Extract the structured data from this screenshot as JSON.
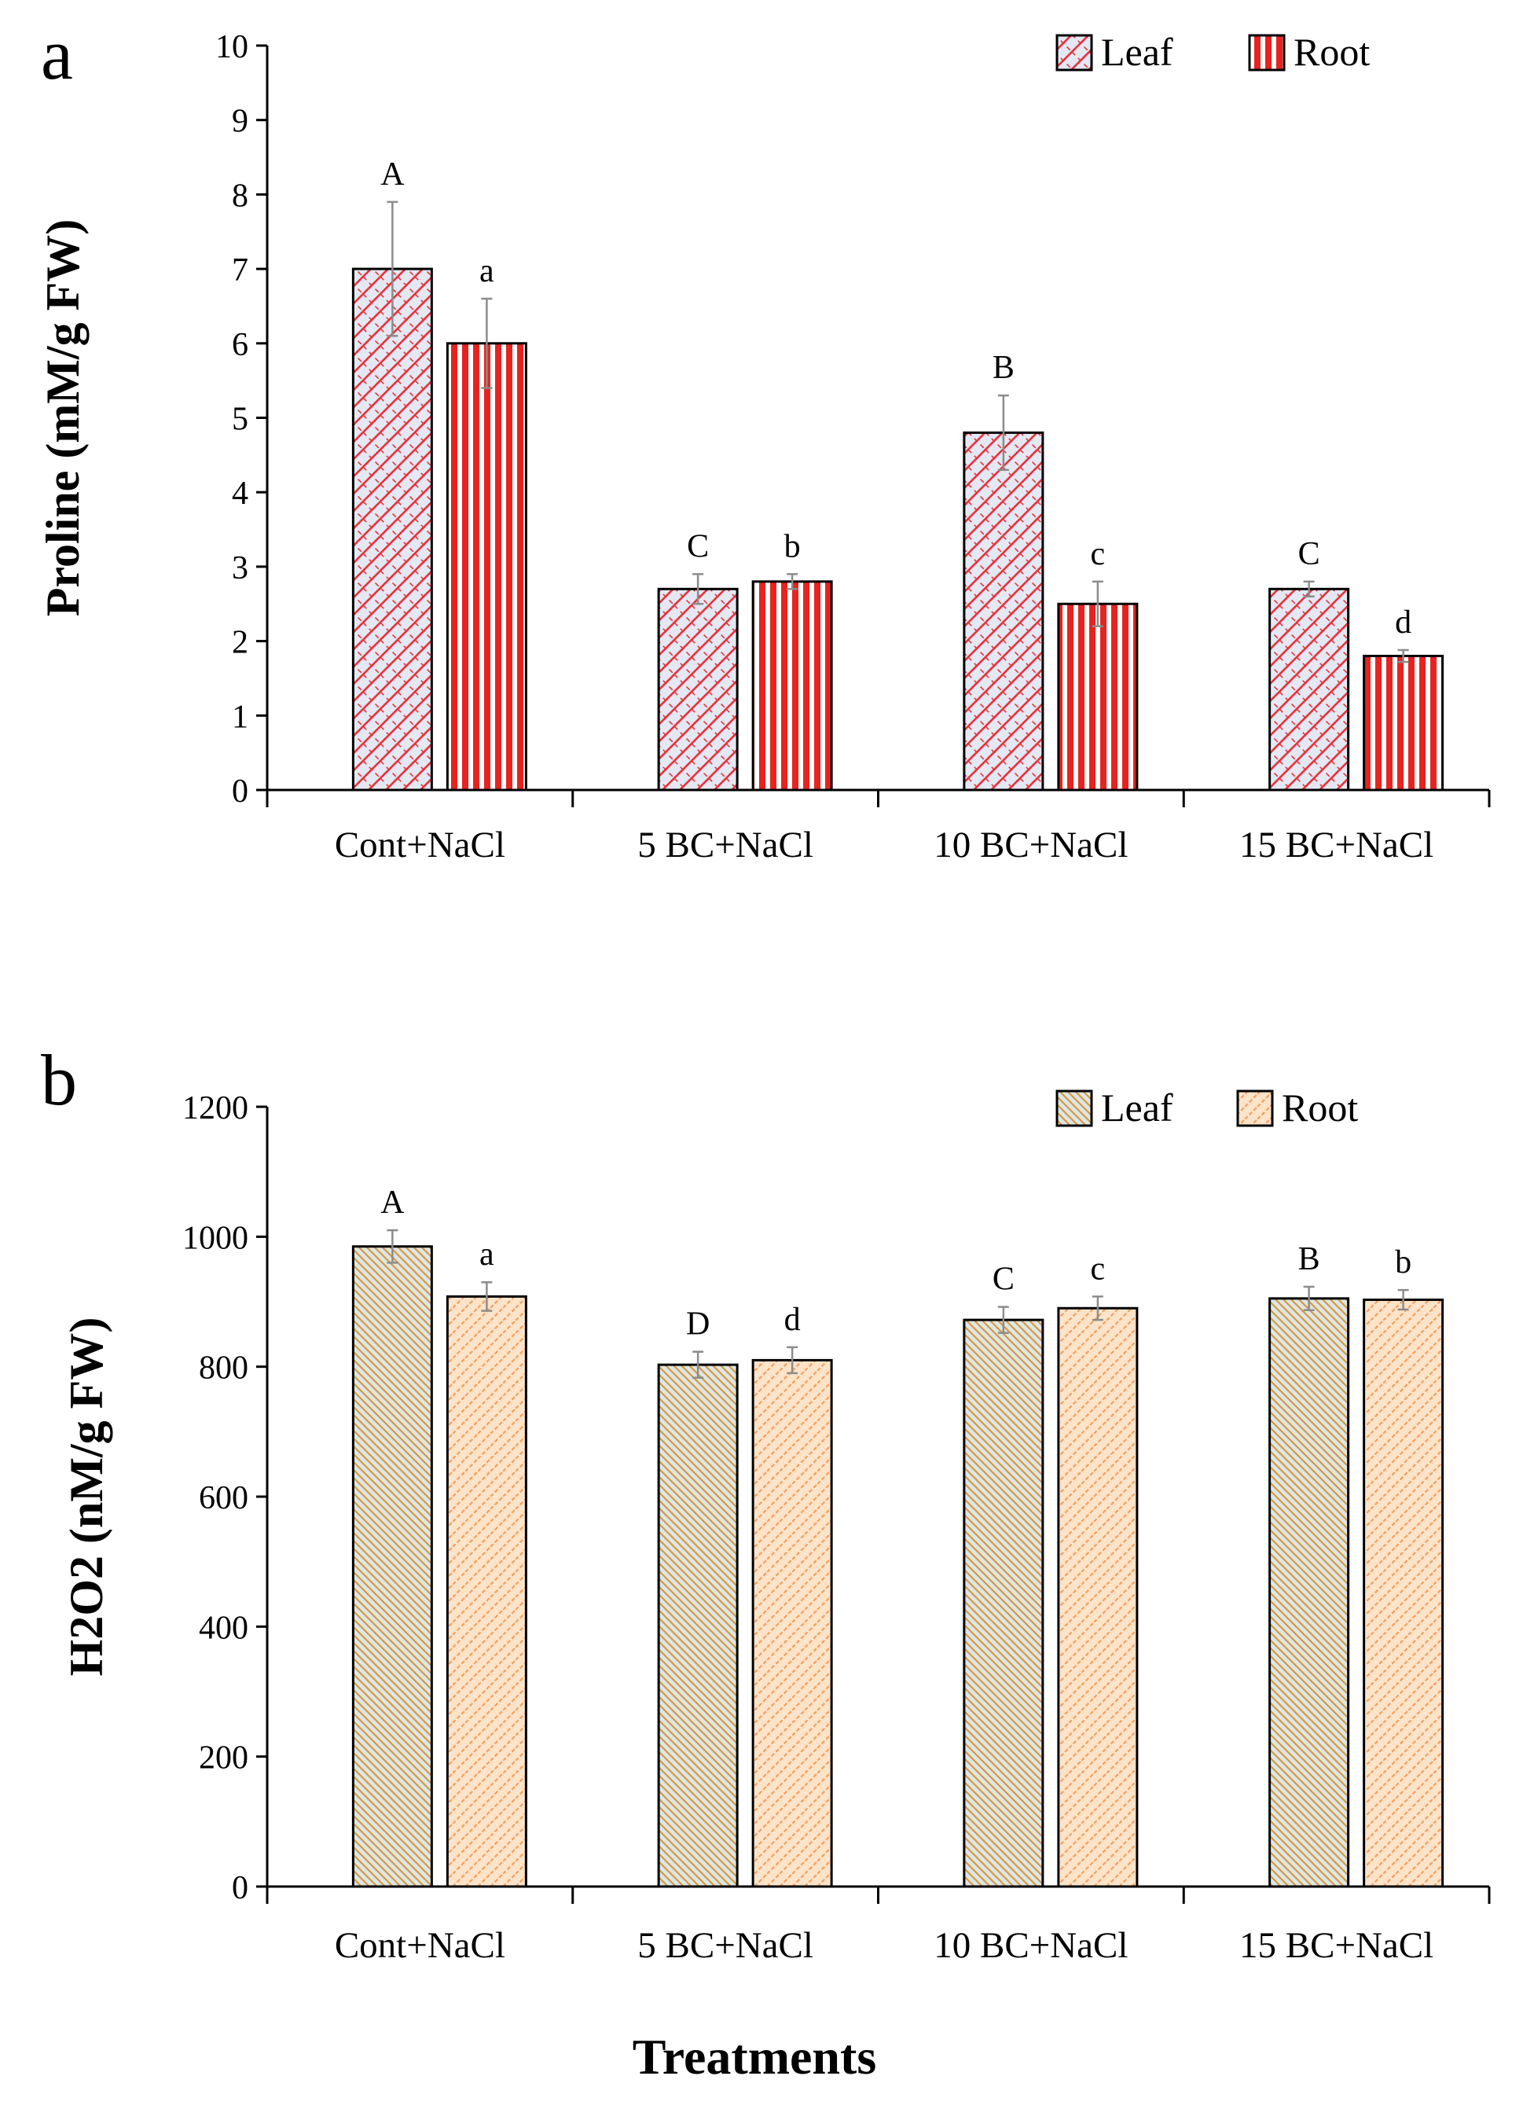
{
  "xlabel": "Treatments",
  "colors": {
    "leaf_a_stroke": "#e8323a",
    "leaf_a_fill": "#e3e8f3",
    "root_a_fill": "#e8231f",
    "root_a_bg": "#ffffff",
    "leaf_b_stroke": "#d69a3a",
    "leaf_b_fill": "#dde6e8",
    "root_b_stroke": "#f0a060",
    "root_b_fill": "#fde3c8",
    "error_bar": "#8c8c8c",
    "axis": "#000000"
  },
  "chart_data": [
    {
      "panel": "a",
      "type": "bar",
      "title": "",
      "xlabel": "",
      "ylabel": "Proline (mM/g FW)",
      "categories": [
        "Cont+NaCl",
        "5 BC+NaCl",
        "10 BC+NaCl",
        "15 BC+NaCl"
      ],
      "ylim": [
        0,
        10
      ],
      "yticks": [
        "0",
        "1",
        "2",
        "3",
        "4",
        "5",
        "6",
        "7",
        "8",
        "9",
        "10"
      ],
      "legend": [
        "Leaf",
        "Root"
      ],
      "legend_position": "top-right",
      "series": [
        {
          "name": "Leaf",
          "values": [
            7.0,
            2.7,
            4.8,
            2.7
          ],
          "errors": [
            0.9,
            0.2,
            0.5,
            0.1
          ],
          "labels": [
            "A",
            "C",
            "B",
            "C"
          ]
        },
        {
          "name": "Root",
          "values": [
            6.0,
            2.8,
            2.5,
            1.8
          ],
          "errors": [
            0.6,
            0.1,
            0.3,
            0.08
          ],
          "labels": [
            "a",
            "b",
            "c",
            "d"
          ]
        }
      ]
    },
    {
      "panel": "b",
      "type": "bar",
      "title": "",
      "xlabel": "",
      "ylabel": "H2O2 (nM/g FW)",
      "categories": [
        "Cont+NaCl",
        "5 BC+NaCl",
        "10 BC+NaCl",
        "15 BC+NaCl"
      ],
      "ylim": [
        0,
        1200
      ],
      "yticks": [
        "0",
        "200",
        "400",
        "600",
        "800",
        "1000",
        "1200"
      ],
      "legend": [
        "Leaf",
        "Root"
      ],
      "legend_position": "top-right",
      "series": [
        {
          "name": "Leaf",
          "values": [
            985,
            803,
            872,
            905
          ],
          "errors": [
            25,
            20,
            20,
            18
          ],
          "labels": [
            "A",
            "D",
            "C",
            "B"
          ]
        },
        {
          "name": "Root",
          "values": [
            908,
            810,
            890,
            903
          ],
          "errors": [
            22,
            20,
            18,
            15
          ],
          "labels": [
            "a",
            "d",
            "c",
            "b"
          ]
        }
      ]
    }
  ]
}
